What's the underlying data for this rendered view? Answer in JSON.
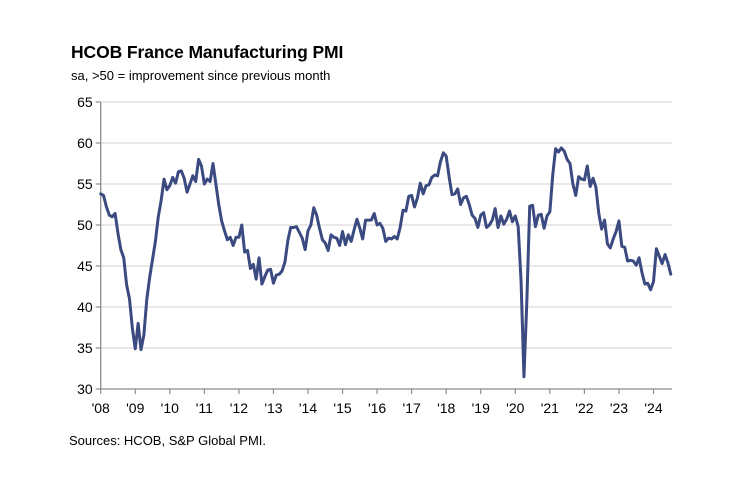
{
  "chart_data": {
    "type": "line",
    "title": "HCOB France Manufacturing PMI",
    "subtitle": "sa, >50 = improvement since previous month",
    "source": "Sources: HCOB, S&P Global PMI.",
    "xlabel": "",
    "ylabel": "",
    "ylim": [
      30,
      65
    ],
    "yticks": [
      30,
      35,
      40,
      45,
      50,
      55,
      60,
      65
    ],
    "x_start": "2008-01",
    "x_frequency": "monthly",
    "xtick_labels": [
      "'08",
      "'09",
      "'10",
      "'11",
      "'12",
      "'13",
      "'14",
      "'15",
      "'16",
      "'17",
      "'18",
      "'19",
      "'20",
      "'21",
      "'22",
      "'23",
      "'24"
    ],
    "grid": "horizontal",
    "legend": "none",
    "series": [
      {
        "name": "HCOB France Manufacturing PMI",
        "color": "#3b4a80",
        "values": [
          53.8,
          53.6,
          52.2,
          51.2,
          51.0,
          51.4,
          49.0,
          47.0,
          46.0,
          42.7,
          41.0,
          37.4,
          34.9,
          38.0,
          34.8,
          36.6,
          40.9,
          43.6,
          45.8,
          48.0,
          51.0,
          53.0,
          55.6,
          54.3,
          54.8,
          55.8,
          55.1,
          56.5,
          56.6,
          55.7,
          54.0,
          55.0,
          56.0,
          55.3,
          58.0,
          57.2,
          55.0,
          55.6,
          55.3,
          57.5,
          55.0,
          52.5,
          50.5,
          49.3,
          48.2,
          48.5,
          47.5,
          48.5,
          48.5,
          50.0,
          46.7,
          46.9,
          44.7,
          45.2,
          43.4,
          46.0,
          42.8,
          43.7,
          44.5,
          44.6,
          42.9,
          43.9,
          44.0,
          44.4,
          45.5,
          48.1,
          49.7,
          49.7,
          49.8,
          49.1,
          48.4,
          47.0,
          49.3,
          50.0,
          52.1,
          51.2,
          49.6,
          48.2,
          47.8,
          46.9,
          48.8,
          48.5,
          48.4,
          47.5,
          49.2,
          47.6,
          48.8,
          48.0,
          49.4,
          50.7,
          49.6,
          48.3,
          50.6,
          50.6,
          50.6,
          51.4,
          50.0,
          50.2,
          49.6,
          48.0,
          48.4,
          48.3,
          48.6,
          48.3,
          49.7,
          51.8,
          51.7,
          53.5,
          53.6,
          52.2,
          53.3,
          55.1,
          53.8,
          54.8,
          54.9,
          55.8,
          56.1,
          56.0,
          57.7,
          58.8,
          58.4,
          55.9,
          53.7,
          53.8,
          54.4,
          52.5,
          53.3,
          53.5,
          52.5,
          51.2,
          50.8,
          49.7,
          51.2,
          51.5,
          49.7,
          50.0,
          50.6,
          52.0,
          49.7,
          51.1,
          50.1,
          50.7,
          51.7,
          50.4,
          51.1,
          49.8,
          43.2,
          31.5,
          40.6,
          52.3,
          52.4,
          49.8,
          51.2,
          51.3,
          49.6,
          51.1,
          51.6,
          56.1,
          59.3,
          58.9,
          59.4,
          59.0,
          58.0,
          57.5,
          55.0,
          53.6,
          55.9,
          55.6,
          55.5,
          57.2,
          54.7,
          55.7,
          54.6,
          51.4,
          49.5,
          50.6,
          47.7,
          47.2,
          48.3,
          49.2,
          50.5,
          47.4,
          47.3,
          45.6,
          45.7,
          45.6,
          45.1,
          46.0,
          44.2,
          42.8,
          42.9,
          42.1,
          43.1,
          47.1,
          46.2,
          45.3,
          46.4,
          45.4,
          44.0
        ]
      }
    ]
  }
}
